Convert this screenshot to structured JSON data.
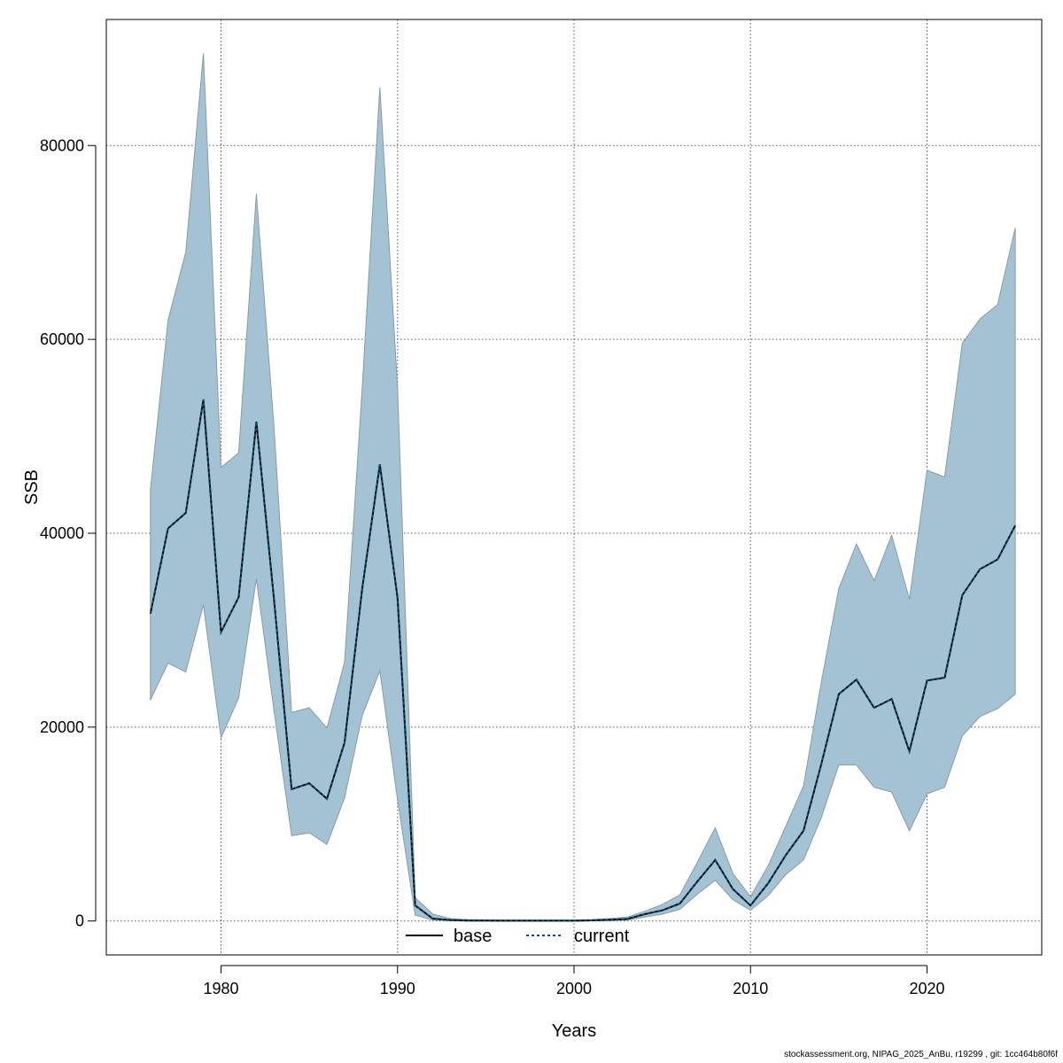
{
  "chart_data": {
    "type": "line",
    "title": "",
    "xlabel": "Years",
    "ylabel": "SSB",
    "xlim": [
      1973.5,
      2026.5
    ],
    "ylim": [
      -3500,
      93000
    ],
    "x_ticks": [
      1980,
      1990,
      2000,
      2010,
      2020
    ],
    "x_tick_labels": [
      "1980",
      "1990",
      "2000",
      "2010",
      "2020"
    ],
    "y_ticks": [
      0,
      20000,
      40000,
      60000,
      80000
    ],
    "y_tick_labels": [
      "0",
      "20000",
      "40000",
      "60000",
      "80000"
    ],
    "grid": true,
    "x": [
      1976,
      1977,
      1978,
      1979,
      1980,
      1981,
      1982,
      1983,
      1984,
      1985,
      1986,
      1987,
      1988,
      1989,
      1990,
      1991,
      1992,
      1993,
      1994,
      1995,
      1996,
      1997,
      1998,
      1999,
      2000,
      2001,
      2002,
      2003,
      2004,
      2005,
      2006,
      2007,
      2008,
      2009,
      2010,
      2011,
      2012,
      2013,
      2014,
      2015,
      2016,
      2017,
      2018,
      2019,
      2020,
      2021,
      2022,
      2023,
      2024,
      2025
    ],
    "band": {
      "name": "confidence interval",
      "color": "#a3c3d4",
      "upper": [
        44500,
        62000,
        69000,
        89500,
        46800,
        48300,
        75000,
        51000,
        21500,
        22000,
        19900,
        26700,
        55000,
        86000,
        55000,
        2400,
        700,
        250,
        150,
        120,
        100,
        100,
        100,
        100,
        100,
        150,
        250,
        400,
        1000,
        1700,
        2700,
        6100,
        9600,
        4900,
        2500,
        5700,
        9800,
        13900,
        24500,
        34300,
        38900,
        35100,
        39800,
        33200,
        46500,
        45800,
        59600,
        62100,
        63600,
        71500
      ],
      "lower": [
        22800,
        26600,
        25700,
        32600,
        18900,
        23000,
        35300,
        21700,
        8800,
        9100,
        7900,
        12700,
        21200,
        25800,
        12500,
        600,
        100,
        30,
        20,
        15,
        10,
        10,
        10,
        10,
        10,
        20,
        40,
        80,
        400,
        700,
        1200,
        2800,
        4200,
        2200,
        1100,
        2600,
        4800,
        6300,
        10600,
        16100,
        16100,
        13800,
        13300,
        9300,
        13100,
        13800,
        19100,
        21100,
        21900,
        23400
      ]
    },
    "series": [
      {
        "name": "base",
        "style": "solid",
        "color": "#000000",
        "values": [
          31700,
          40500,
          42100,
          53800,
          29800,
          33400,
          51500,
          33200,
          13600,
          14200,
          12600,
          18400,
          34300,
          47100,
          33300,
          1600,
          250,
          100,
          50,
          40,
          30,
          30,
          30,
          30,
          30,
          60,
          120,
          200,
          700,
          1100,
          1800,
          4100,
          6300,
          3300,
          1600,
          3900,
          6800,
          9300,
          16100,
          23400,
          24900,
          22000,
          22900,
          17500,
          24800,
          25100,
          33600,
          36300,
          37300,
          40800
        ]
      },
      {
        "name": "current",
        "style": "dotted",
        "color": "#00557a",
        "values": [
          31700,
          40500,
          42100,
          53800,
          29800,
          33400,
          51500,
          33200,
          13600,
          14200,
          12600,
          18400,
          34300,
          47100,
          33300,
          1600,
          250,
          100,
          50,
          40,
          30,
          30,
          30,
          30,
          30,
          60,
          120,
          200,
          700,
          1100,
          1800,
          4100,
          6300,
          3300,
          1600,
          3900,
          6800,
          9300,
          16100,
          23400,
          24900,
          22000,
          22900,
          17500,
          24800,
          25100,
          33600,
          36300,
          37300,
          40800
        ]
      }
    ],
    "legend": {
      "position": "bottom-center",
      "entries": [
        "base",
        "current"
      ]
    }
  },
  "footer": "stockassessment.org, NIPAG_2025_AnBu, r19299 , git: 1cc464b80f6f"
}
